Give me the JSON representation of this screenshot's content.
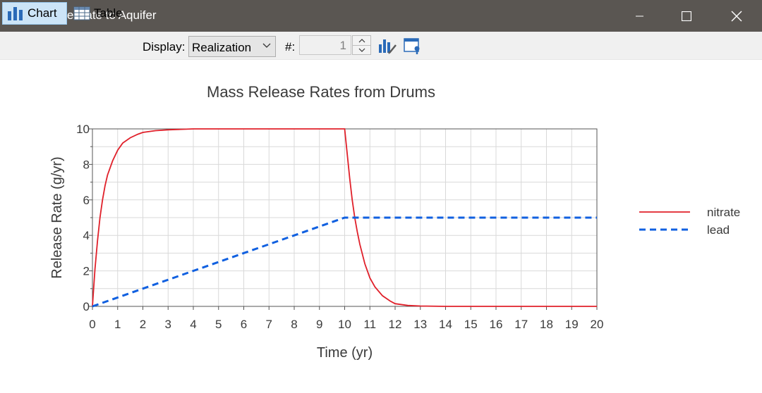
{
  "window": {
    "title": "Release Rate to Aquifer",
    "icon": "bar-chart-icon"
  },
  "toolbar": {
    "chart_label": "Chart",
    "table_label": "Table",
    "display_label": "Display:",
    "display_value": "Realization",
    "number_label": "#:",
    "number_value": "1"
  },
  "colors": {
    "nitrate": "#e0202a",
    "lead": "#1060e0",
    "titlebar": "#5a5652",
    "toolbar_active": "#cce4f7"
  },
  "chart_data": {
    "type": "line",
    "title": "Mass Release Rates from Drums",
    "xlabel": "Time (yr)",
    "ylabel": "Release Rate (g/yr)",
    "xlim": [
      0,
      20
    ],
    "ylim": [
      0,
      10
    ],
    "xticks": [
      "0",
      "1",
      "2",
      "3",
      "4",
      "5",
      "6",
      "7",
      "8",
      "9",
      "10",
      "11",
      "12",
      "13",
      "14",
      "15",
      "16",
      "17",
      "18",
      "19",
      "20"
    ],
    "yticks": [
      "0",
      "2",
      "4",
      "6",
      "8",
      "10"
    ],
    "grid": true,
    "legend_position": "right",
    "series": [
      {
        "name": "nitrate",
        "style": "solid",
        "x": [
          0,
          0.1,
          0.2,
          0.3,
          0.4,
          0.5,
          0.6,
          0.8,
          1.0,
          1.2,
          1.5,
          1.8,
          2.0,
          2.5,
          3.0,
          4,
          5,
          6,
          7,
          8,
          9,
          10,
          10.1,
          10.2,
          10.3,
          10.4,
          10.5,
          10.6,
          10.8,
          11.0,
          11.2,
          11.5,
          11.8,
          12.0,
          12.5,
          13,
          14,
          15,
          16,
          17,
          18,
          19,
          20
        ],
        "y": [
          0,
          2.1,
          3.7,
          5.0,
          6.0,
          6.8,
          7.4,
          8.2,
          8.8,
          9.2,
          9.5,
          9.7,
          9.8,
          9.9,
          9.95,
          10,
          10,
          10,
          10,
          10,
          10,
          10,
          8.6,
          7.2,
          6.0,
          5.0,
          4.2,
          3.5,
          2.4,
          1.6,
          1.1,
          0.6,
          0.3,
          0.15,
          0.05,
          0.02,
          0,
          0,
          0,
          0,
          0,
          0,
          0
        ]
      },
      {
        "name": "lead",
        "style": "dashed",
        "x": [
          0,
          10,
          20
        ],
        "y": [
          0,
          5,
          5
        ]
      }
    ]
  }
}
